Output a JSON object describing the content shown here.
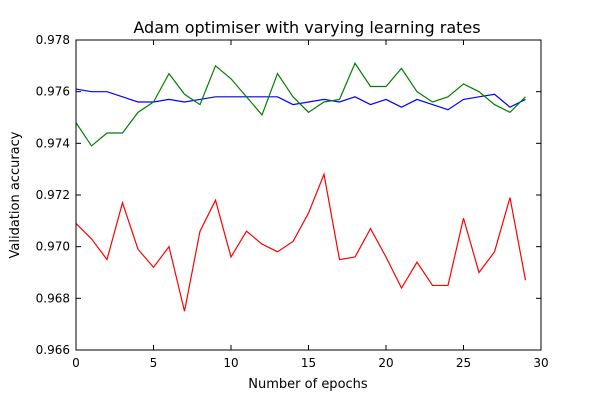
{
  "chart_data": {
    "type": "line",
    "title": "Adam optimiser with varying learning rates",
    "xlabel": "Number of epochs",
    "ylabel": "Validation accuracy",
    "xlim": [
      0,
      30
    ],
    "ylim": [
      0.966,
      0.978
    ],
    "xticks": [
      0,
      5,
      10,
      15,
      20,
      25,
      30
    ],
    "yticks": [
      0.966,
      0.968,
      0.97,
      0.972,
      0.974,
      0.976,
      0.978
    ],
    "xtick_labels": [
      "0",
      "5",
      "10",
      "15",
      "20",
      "25",
      "30"
    ],
    "ytick_labels": [
      "0.966",
      "0.968",
      "0.970",
      "0.972",
      "0.974",
      "0.976",
      "0.978"
    ],
    "grid": false,
    "legend": false,
    "x": [
      0,
      1,
      2,
      3,
      4,
      5,
      6,
      7,
      8,
      9,
      10,
      11,
      12,
      13,
      14,
      15,
      16,
      17,
      18,
      19,
      20,
      21,
      22,
      23,
      24,
      25,
      26,
      27,
      28,
      29
    ],
    "series": [
      {
        "color": "#0000ff",
        "values": [
          0.9761,
          0.976,
          0.976,
          0.9758,
          0.9756,
          0.9756,
          0.9757,
          0.9756,
          0.9757,
          0.9758,
          0.9758,
          0.9758,
          0.9758,
          0.9758,
          0.9755,
          0.9756,
          0.9757,
          0.9756,
          0.9758,
          0.9755,
          0.9757,
          0.9754,
          0.9757,
          0.9755,
          0.9753,
          0.9757,
          0.9758,
          0.9759,
          0.9754,
          0.9757
        ]
      },
      {
        "color": "#008000",
        "values": [
          0.9748,
          0.9739,
          0.9744,
          0.9744,
          0.9752,
          0.9756,
          0.9767,
          0.9759,
          0.9755,
          0.977,
          0.9765,
          0.9758,
          0.9751,
          0.9767,
          0.9758,
          0.9752,
          0.9756,
          0.9757,
          0.9771,
          0.9762,
          0.9762,
          0.9769,
          0.976,
          0.9756,
          0.9758,
          0.9763,
          0.976,
          0.9755,
          0.9752,
          0.9758
        ]
      },
      {
        "color": "#ff0000",
        "values": [
          0.9709,
          0.9703,
          0.9695,
          0.9717,
          0.9699,
          0.9692,
          0.97,
          0.9675,
          0.9706,
          0.9718,
          0.9696,
          0.9706,
          0.9701,
          0.9698,
          0.9702,
          0.9713,
          0.9728,
          0.9695,
          0.9696,
          0.9707,
          0.9696,
          0.9684,
          0.9694,
          0.9685,
          0.9685,
          0.9711,
          0.969,
          0.9698,
          0.9719,
          0.9687
        ]
      }
    ]
  }
}
